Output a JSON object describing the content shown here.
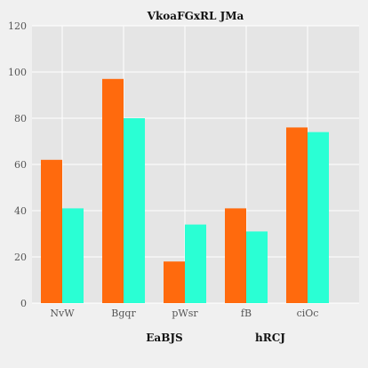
{
  "chart_data": {
    "type": "bar",
    "title": "VkoaFGxRL JMa",
    "categories": [
      "NvW",
      "Bgqr",
      "pWsr",
      "fB",
      "ciOc"
    ],
    "series": [
      {
        "name": "EaBJS",
        "values": [
          62,
          97,
          18,
          41,
          76
        ],
        "color": "#ff6a0d"
      },
      {
        "name": "hRCJ",
        "values": [
          41,
          80,
          34,
          31,
          74
        ],
        "color": "#2affd4"
      }
    ],
    "ylim": [
      0,
      120
    ],
    "yticks": [
      0,
      20,
      40,
      60,
      80,
      100,
      120
    ],
    "grid": true,
    "legend_placement": "bottom"
  }
}
